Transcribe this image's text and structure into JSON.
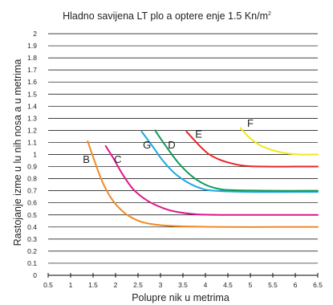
{
  "chart_data": {
    "type": "line",
    "title": "Hladno savijena LT plo  a optere  enje 1.5 Kn/m",
    "title_sup": "2",
    "xlabel": "Polupre  nik u metrima",
    "ylabel": "Rastojanje izme  u lu  nih nosa  a u metrima",
    "xlim": [
      0.5,
      6.5
    ],
    "ylim": [
      0,
      2
    ],
    "x_ticks": [
      "0.5",
      "1",
      "1.5",
      "2",
      "2.5",
      "3",
      "3.5",
      "4",
      "4.5",
      "5",
      "5.5",
      "6",
      "6.5"
    ],
    "y_ticks": [
      "0",
      "0.1",
      "0.2",
      "0.3",
      "0.4",
      "0.5",
      "0.6",
      "0.7",
      "0.8",
      "0.9",
      "1",
      "1.1",
      "1.2",
      "1.3",
      "1.4",
      "1.5",
      "1.6",
      "1.7",
      "1.8",
      "1.9",
      "2"
    ],
    "grid": "horizontal",
    "series": [
      {
        "name": "B",
        "color": "#f08a24",
        "label_at": [
          1.35,
          0.93
        ],
        "points": [
          [
            1.38,
            1.11
          ],
          [
            1.5,
            0.98
          ],
          [
            1.7,
            0.78
          ],
          [
            1.9,
            0.64
          ],
          [
            2.1,
            0.55
          ],
          [
            2.3,
            0.49
          ],
          [
            2.6,
            0.44
          ],
          [
            3.0,
            0.415
          ],
          [
            3.5,
            0.405
          ],
          [
            4.5,
            0.4
          ],
          [
            5.5,
            0.4
          ],
          [
            6.5,
            0.4
          ]
        ]
      },
      {
        "name": "C",
        "color": "#e0178c",
        "label_at": [
          2.05,
          0.93
        ],
        "points": [
          [
            1.78,
            1.07
          ],
          [
            1.95,
            0.97
          ],
          [
            2.15,
            0.84
          ],
          [
            2.4,
            0.71
          ],
          [
            2.7,
            0.62
          ],
          [
            3.0,
            0.565
          ],
          [
            3.3,
            0.53
          ],
          [
            3.8,
            0.505
          ],
          [
            4.5,
            0.5
          ],
          [
            5.5,
            0.5
          ],
          [
            6.5,
            0.5
          ]
        ]
      },
      {
        "name": "G",
        "color": "#1aa9e4",
        "label_at": [
          2.7,
          1.05
        ],
        "points": [
          [
            2.58,
            1.19
          ],
          [
            2.8,
            1.08
          ],
          [
            3.05,
            0.95
          ],
          [
            3.3,
            0.85
          ],
          [
            3.6,
            0.77
          ],
          [
            3.9,
            0.72
          ],
          [
            4.2,
            0.7
          ],
          [
            5.0,
            0.69
          ],
          [
            6.0,
            0.69
          ],
          [
            6.5,
            0.69
          ]
        ]
      },
      {
        "name": "D",
        "color": "#14995a",
        "label_at": [
          3.25,
          1.05
        ],
        "points": [
          [
            2.88,
            1.2
          ],
          [
            3.1,
            1.08
          ],
          [
            3.4,
            0.93
          ],
          [
            3.7,
            0.82
          ],
          [
            4.0,
            0.75
          ],
          [
            4.3,
            0.715
          ],
          [
            4.6,
            0.705
          ],
          [
            5.5,
            0.7
          ],
          [
            6.5,
            0.7
          ]
        ]
      },
      {
        "name": "E",
        "color": "#e8262a",
        "label_at": [
          3.85,
          1.14
        ],
        "points": [
          [
            3.58,
            1.19
          ],
          [
            3.8,
            1.1
          ],
          [
            4.05,
            1.01
          ],
          [
            4.3,
            0.96
          ],
          [
            4.6,
            0.925
          ],
          [
            4.9,
            0.905
          ],
          [
            5.3,
            0.9
          ],
          [
            6.0,
            0.9
          ],
          [
            6.5,
            0.9
          ]
        ]
      },
      {
        "name": "F",
        "color": "#f4e61a",
        "label_at": [
          5.0,
          1.23
        ],
        "points": [
          [
            4.78,
            1.22
          ],
          [
            4.95,
            1.15
          ],
          [
            5.2,
            1.08
          ],
          [
            5.5,
            1.035
          ],
          [
            5.8,
            1.01
          ],
          [
            6.1,
            1.0
          ],
          [
            6.5,
            1.0
          ]
        ]
      }
    ]
  }
}
